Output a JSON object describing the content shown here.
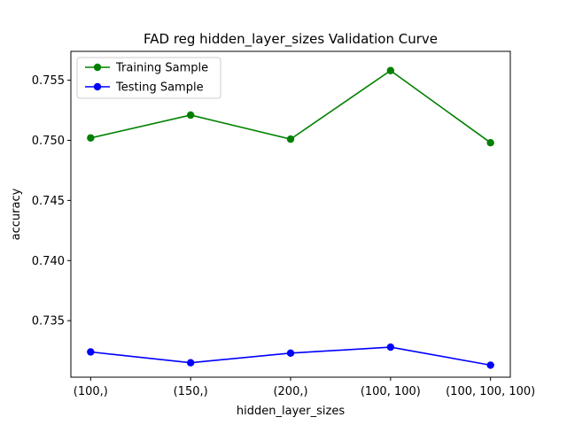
{
  "chart_data": {
    "type": "line",
    "title": "FAD reg hidden_layer_sizes Validation Curve",
    "xlabel": "hidden_layer_sizes",
    "ylabel": "accuracy",
    "categories": [
      "(100,)",
      "(150,)",
      "(200,)",
      "(100, 100)",
      "(100, 100, 100)"
    ],
    "ylim": [
      0.7303,
      0.7574
    ],
    "yticks": [
      "0.735",
      "0.740",
      "0.745",
      "0.750",
      "0.755"
    ],
    "grid": false,
    "legend_position": "top-left",
    "series": [
      {
        "name": "Training Sample",
        "color": "#008000",
        "values": [
          0.7502,
          0.7521,
          0.7501,
          0.7558,
          0.7498
        ]
      },
      {
        "name": "Testing Sample",
        "color": "#0000ff",
        "values": [
          0.7324,
          0.7315,
          0.7323,
          0.7328,
          0.7313
        ]
      }
    ]
  }
}
